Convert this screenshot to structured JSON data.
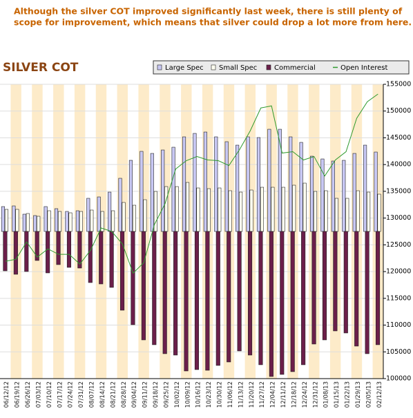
{
  "caption": [
    "Although the silver COT improved significantly last week, there is still plenty of",
    "scope for improvement, which means that silver could drop a lot more from here."
  ],
  "chart_data": {
    "type": "bar",
    "title": "SILVER COT",
    "categories": [
      "06/12/12",
      "06/19/12",
      "06/26/12",
      "07/03/12",
      "07/10/12",
      "07/17/12",
      "07/24/12",
      "07/31/12",
      "08/07/12",
      "08/14/12",
      "08/21/12",
      "08/28/12",
      "09/04/12",
      "09/11/12",
      "09/18/12",
      "09/25/12",
      "10/02/12",
      "10/09/12",
      "10/16/12",
      "10/23/12",
      "10/30/12",
      "11/06/12",
      "11/13/12",
      "11/20/12",
      "11/27/12",
      "12/04/12",
      "12/11/12",
      "12/18/12",
      "12/24/12",
      "12/31/12",
      "01/08/13",
      "01/15/13",
      "01/22/13",
      "01/29/13",
      "02/05/13",
      "02/12/13"
    ],
    "series": [
      {
        "name": "Large Spec",
        "type": "bar",
        "color": "#c8c8f4",
        "values": [
          4680,
          4810,
          3250,
          2990,
          4680,
          4290,
          3770,
          3900,
          6240,
          6500,
          7410,
          10010,
          13390,
          15080,
          14690,
          15340,
          15860,
          17810,
          18460,
          18720,
          17810,
          16900,
          16250,
          17810,
          17680,
          19240,
          19240,
          17810,
          16770,
          14170,
          13650,
          13260,
          13390,
          14690,
          16250,
          14950
        ]
      },
      {
        "name": "Small Spec",
        "type": "bar",
        "color": "#fffff0",
        "values": [
          4160,
          4160,
          3380,
          2860,
          3900,
          3770,
          3510,
          3770,
          4030,
          3770,
          3900,
          5460,
          4940,
          5980,
          7540,
          8450,
          8450,
          9230,
          8190,
          8060,
          8190,
          7670,
          7410,
          7800,
          8320,
          8320,
          8320,
          8710,
          9100,
          7540,
          7670,
          6240,
          6240,
          7670,
          7410,
          7020
        ]
      },
      {
        "name": "Commercial",
        "type": "bar",
        "color": "#6b1f4a",
        "values": [
          -7410,
          -8060,
          -7540,
          -5460,
          -7800,
          -6240,
          -6760,
          -6890,
          -9620,
          -9880,
          -10530,
          -14820,
          -17550,
          -20410,
          -21320,
          -23010,
          -23270,
          -26260,
          -26000,
          -26130,
          -25220,
          -24570,
          -22490,
          -23270,
          -25090,
          -27300,
          -26910,
          -26390,
          -25090,
          -21190,
          -20410,
          -18720,
          -19110,
          -21580,
          -23010,
          -21320
        ]
      },
      {
        "name": "Open Interest",
        "type": "line",
        "axis": "y2",
        "color": "#2e9a2e",
        "values": [
          121920,
          122310,
          125550,
          122700,
          124250,
          123220,
          123220,
          121400,
          123990,
          128140,
          127500,
          125160,
          119710,
          121660,
          128790,
          132680,
          139170,
          140730,
          141500,
          140860,
          140730,
          139820,
          142800,
          146300,
          150580,
          150970,
          142150,
          142410,
          140860,
          141500,
          137870,
          140860,
          142410,
          148640,
          151750,
          153180
        ]
      }
    ],
    "ylim": [
      -27700,
      27700
    ],
    "y2lim": [
      100000,
      155000
    ],
    "y2ticks": [
      155000,
      150000,
      145000,
      140000,
      135000,
      130000,
      125000,
      120000,
      115000,
      110000,
      105000,
      100000
    ],
    "grid": true,
    "legend": "top-right"
  }
}
